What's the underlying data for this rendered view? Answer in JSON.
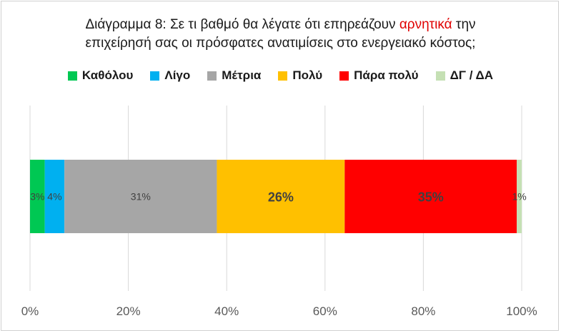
{
  "title": {
    "line1_pre": "Διάγραμμα 8: Σε τι βαθμό θα λέγατε ότι επηρεάζουν ",
    "line1_highlight": "αρνητικά",
    "line1_post": " την",
    "line2": "επιχείρησή σας οι πρόσφατες ανατιμίσεις στο ενεργειακό κόστος;"
  },
  "colors": {
    "highlight": "#e00000",
    "grid": "#d9d9d9",
    "axis_text": "#595959"
  },
  "chart_data": {
    "type": "bar",
    "orientation": "horizontal",
    "stacked": true,
    "percent_stacked": true,
    "xlim": [
      0,
      100
    ],
    "x_ticks": [
      "0%",
      "20%",
      "40%",
      "60%",
      "80%",
      "100%"
    ],
    "grid": true,
    "legend_position": "top",
    "series": [
      {
        "name": "Καθόλου",
        "value": 3,
        "label": "3%",
        "color": "#00c853",
        "label_style": "normal"
      },
      {
        "name": "Λίγο",
        "value": 4,
        "label": "4%",
        "color": "#00b0f0",
        "label_style": "normal"
      },
      {
        "name": "Μέτρια",
        "value": 31,
        "label": "31%",
        "color": "#a6a6a6",
        "label_style": "normal"
      },
      {
        "name": "Πολύ",
        "value": 26,
        "label": "26%",
        "color": "#ffc000",
        "label_style": "bold"
      },
      {
        "name": "Πάρα πολύ",
        "value": 35,
        "label": "35%",
        "color": "#ff0000",
        "label_style": "bold"
      },
      {
        "name": "ΔΓ / ΔΑ",
        "value": 1,
        "label": "1%",
        "color": "#c5e0b4",
        "label_style": "normal"
      }
    ]
  }
}
